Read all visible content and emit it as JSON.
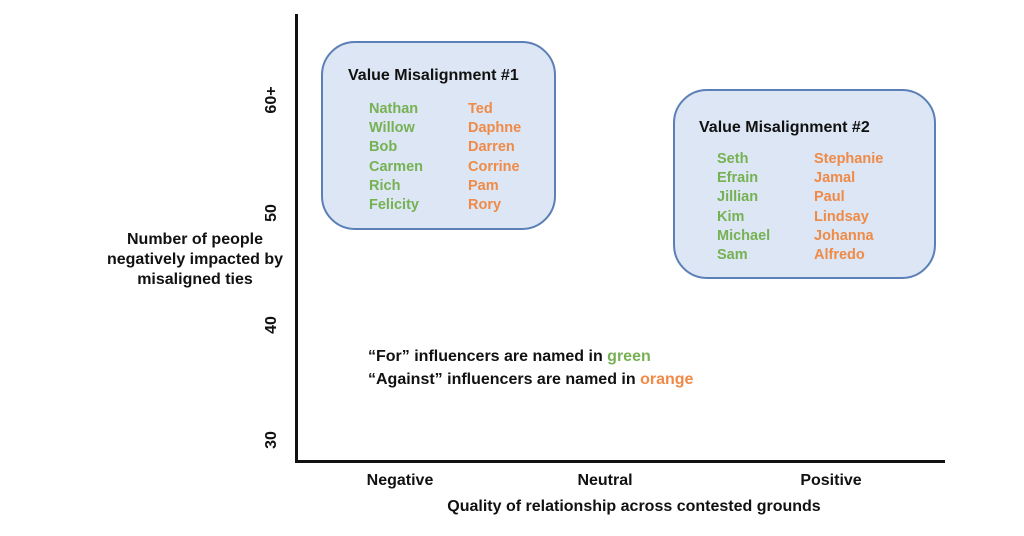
{
  "colors": {
    "for": "#76b153",
    "against": "#ef8a47",
    "box_fill": "#dce6f4",
    "box_border": "#5b7fb6"
  },
  "y_axis": {
    "label_lines": [
      "Number of people",
      "negatively impacted by",
      "misaligned ties"
    ],
    "ticks": [
      "60+",
      "50",
      "40",
      "30"
    ]
  },
  "x_axis": {
    "label": "Quality of relationship across contested grounds",
    "ticks": [
      "Negative",
      "Neutral",
      "Positive"
    ]
  },
  "groups": [
    {
      "title": "Value Misalignment #1",
      "for": [
        "Nathan",
        "Willow",
        "Bob",
        "Carmen",
        "Rich",
        "Felicity"
      ],
      "against": [
        "Ted",
        "Daphne",
        "Darren",
        "Corrine",
        "Pam",
        "Rory"
      ]
    },
    {
      "title": "Value Misalignment #2",
      "for": [
        "Seth",
        "Efrain",
        "Jillian",
        "Kim",
        "Michael",
        "Sam"
      ],
      "against": [
        "Stephanie",
        "Jamal",
        "Paul",
        "Lindsay",
        "Johanna",
        "Alfredo"
      ]
    }
  ],
  "legend": {
    "line1_prefix": "“For” influencers are named in ",
    "line1_color_word": "green",
    "line2_prefix": "“Against” influencers are named in ",
    "line2_color_word": "orange"
  }
}
